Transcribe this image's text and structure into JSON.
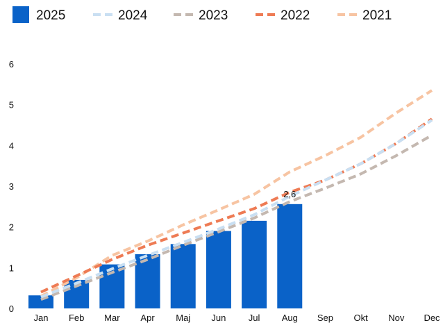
{
  "chart_data": {
    "type": "bar",
    "title": "",
    "xlabel": "",
    "ylabel": "",
    "categories": [
      "Jan",
      "Feb",
      "Mar",
      "Apr",
      "Maj",
      "Jun",
      "Jul",
      "Aug",
      "Sep",
      "Okt",
      "Nov",
      "Dec"
    ],
    "y_ticks": [
      "0",
      "1",
      "2",
      "3",
      "4",
      "5",
      "6"
    ],
    "ylim": [
      0,
      6.2
    ],
    "grid": false,
    "legend_position": "top",
    "bar_series": {
      "name": "2025",
      "color": "#0a62c8",
      "values": [
        0.32,
        0.7,
        1.08,
        1.33,
        1.58,
        1.9,
        2.15,
        2.56,
        null,
        null,
        null,
        null
      ]
    },
    "line_series": [
      {
        "name": "2024",
        "color": "#c9dff2",
        "values": [
          0.28,
          0.62,
          0.97,
          1.3,
          1.62,
          1.95,
          2.3,
          2.75,
          3.15,
          3.55,
          4.05,
          4.62
        ]
      },
      {
        "name": "2023",
        "color": "#c4b8b0",
        "values": [
          0.22,
          0.55,
          0.88,
          1.2,
          1.55,
          1.88,
          2.22,
          2.62,
          2.95,
          3.3,
          3.75,
          4.25
        ]
      },
      {
        "name": "2022",
        "color": "#ee7b54",
        "values": [
          0.4,
          0.8,
          1.2,
          1.55,
          1.85,
          2.15,
          2.45,
          2.85,
          3.15,
          3.55,
          4.05,
          4.65
        ]
      },
      {
        "name": "2021",
        "color": "#f7c4a2",
        "values": [
          0.3,
          0.75,
          1.3,
          1.65,
          2.05,
          2.42,
          2.8,
          3.35,
          3.75,
          4.2,
          4.8,
          5.35
        ]
      }
    ],
    "data_labels": [
      {
        "category": "Aug",
        "text": "2,6"
      }
    ]
  }
}
